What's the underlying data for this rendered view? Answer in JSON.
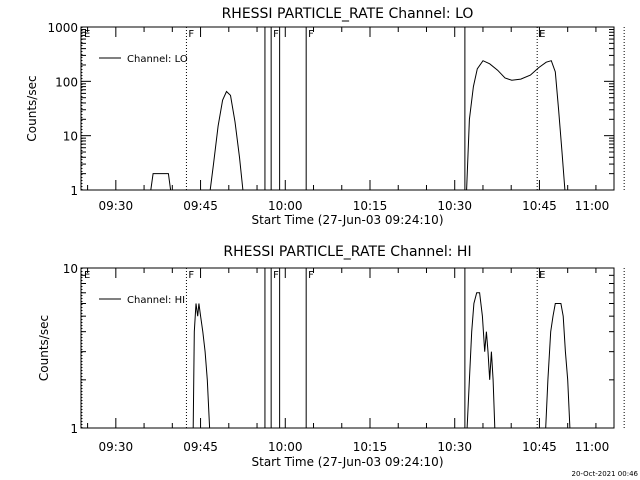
{
  "chart_data": [
    {
      "type": "line",
      "title": "RHESSI PARTICLE_RATE Channel: LO",
      "xlabel": "Start Time (27-Jun-03 09:24:10)",
      "ylabel": "Counts/sec",
      "yscale": "log",
      "ylim": [
        1,
        1000
      ],
      "xlim_minutes": [
        -6.1667,
        88.2
      ],
      "xticks": [
        {
          "t": 0,
          "label": "09:30"
        },
        {
          "t": 15,
          "label": "09:45"
        },
        {
          "t": 30,
          "label": "10:00"
        },
        {
          "t": 45,
          "label": "10:15"
        },
        {
          "t": 60,
          "label": "10:30"
        },
        {
          "t": 75,
          "label": "10:45"
        },
        {
          "t": 90,
          "label": "11:00"
        }
      ],
      "yticks": [
        {
          "v": 1,
          "label": "1"
        },
        {
          "v": 10,
          "label": "10"
        },
        {
          "v": 100,
          "label": "100"
        },
        {
          "v": 1000,
          "label": "1000"
        }
      ],
      "legend": {
        "label": "Channel: LO",
        "position": "top-left"
      },
      "markers": [
        {
          "t": -6.0,
          "style": "dotted",
          "label": "E"
        },
        {
          "t": 12.5,
          "style": "dotted",
          "label": "F"
        },
        {
          "t": 26.4,
          "style": "solid",
          "label": ""
        },
        {
          "t": 27.5,
          "style": "solid",
          "label": "F"
        },
        {
          "t": 29.0,
          "style": "solid",
          "label": ""
        },
        {
          "t": 33.7,
          "style": "solid",
          "label": "F"
        },
        {
          "t": 61.8,
          "style": "solid",
          "label": ""
        },
        {
          "t": 74.6,
          "style": "dotted",
          "label": "E"
        },
        {
          "t": 90.0,
          "style": "dotted",
          "label": ""
        }
      ],
      "series": [
        {
          "name": "",
          "segments": [
            [
              [
                6.2,
                1
              ],
              [
                6.6,
                2
              ],
              [
                9.3,
                2
              ],
              [
                9.7,
                1
              ]
            ],
            [
              [
                16.7,
                1
              ],
              [
                17.3,
                3
              ],
              [
                18.1,
                15
              ],
              [
                18.9,
                45
              ],
              [
                19.6,
                65
              ],
              [
                20.3,
                55
              ],
              [
                21.1,
                18
              ],
              [
                21.9,
                4
              ],
              [
                22.5,
                1
              ]
            ],
            [
              [
                62.1,
                1
              ],
              [
                62.6,
                20
              ],
              [
                63.3,
                80
              ],
              [
                64.0,
                170
              ],
              [
                65.0,
                240
              ],
              [
                66.2,
                210
              ],
              [
                67.6,
                160
              ],
              [
                68.9,
                115
              ],
              [
                70.1,
                105
              ],
              [
                71.7,
                110
              ],
              [
                73.4,
                130
              ],
              [
                74.9,
                180
              ],
              [
                76.2,
                225
              ],
              [
                77.1,
                240
              ],
              [
                77.8,
                150
              ],
              [
                78.4,
                30
              ],
              [
                79.0,
                5
              ],
              [
                79.5,
                1
              ]
            ]
          ]
        }
      ]
    },
    {
      "type": "line",
      "title": "RHESSI PARTICLE_RATE Channel: HI",
      "xlabel": "Start Time (27-Jun-03 09:24:10)",
      "ylabel": "Counts/sec",
      "yscale": "log",
      "ylim": [
        1,
        10
      ],
      "xlim_minutes": [
        -6.1667,
        88.2
      ],
      "xticks": [
        {
          "t": 0,
          "label": "09:30"
        },
        {
          "t": 15,
          "label": "09:45"
        },
        {
          "t": 30,
          "label": "10:00"
        },
        {
          "t": 45,
          "label": "10:15"
        },
        {
          "t": 60,
          "label": "10:30"
        },
        {
          "t": 75,
          "label": "10:45"
        },
        {
          "t": 90,
          "label": "11:00"
        }
      ],
      "yticks": [
        {
          "v": 1,
          "label": "1"
        },
        {
          "v": 10,
          "label": "10"
        }
      ],
      "legend": {
        "label": "Channel: HI",
        "position": "top-left"
      },
      "markers": [
        {
          "t": -6.0,
          "style": "dotted",
          "label": "E"
        },
        {
          "t": 12.5,
          "style": "dotted",
          "label": "F"
        },
        {
          "t": 26.4,
          "style": "solid",
          "label": ""
        },
        {
          "t": 27.5,
          "style": "solid",
          "label": "F"
        },
        {
          "t": 29.0,
          "style": "solid",
          "label": ""
        },
        {
          "t": 33.7,
          "style": "solid",
          "label": "F"
        },
        {
          "t": 61.8,
          "style": "solid",
          "label": ""
        },
        {
          "t": 74.6,
          "style": "dotted",
          "label": "E"
        },
        {
          "t": 90.0,
          "style": "dotted",
          "label": ""
        }
      ],
      "series": [
        {
          "name": "",
          "segments": [
            [
              [
                13.7,
                1
              ],
              [
                13.9,
                4
              ],
              [
                14.2,
                6
              ],
              [
                14.5,
                5
              ],
              [
                14.7,
                6
              ],
              [
                15.0,
                5
              ],
              [
                15.4,
                4
              ],
              [
                15.8,
                3
              ],
              [
                16.2,
                2
              ],
              [
                16.6,
                1
              ]
            ],
            [
              [
                62.2,
                1
              ],
              [
                62.6,
                2
              ],
              [
                63.0,
                4
              ],
              [
                63.4,
                6
              ],
              [
                63.9,
                7
              ],
              [
                64.4,
                7
              ],
              [
                64.9,
                5
              ],
              [
                65.3,
                3
              ],
              [
                65.6,
                4
              ],
              [
                65.9,
                3
              ],
              [
                66.2,
                2
              ],
              [
                66.5,
                3
              ],
              [
                66.8,
                2
              ],
              [
                67.1,
                1
              ]
            ],
            [
              [
                76.1,
                1
              ],
              [
                76.5,
                2
              ],
              [
                77.0,
                4
              ],
              [
                77.4,
                5
              ],
              [
                77.8,
                6
              ],
              [
                78.3,
                6
              ],
              [
                78.8,
                6
              ],
              [
                79.2,
                5
              ],
              [
                79.6,
                3
              ],
              [
                80.0,
                2
              ],
              [
                80.4,
                1
              ]
            ]
          ]
        }
      ]
    }
  ],
  "footer": {
    "timestamp": "20-Oct-2021 00:46"
  }
}
